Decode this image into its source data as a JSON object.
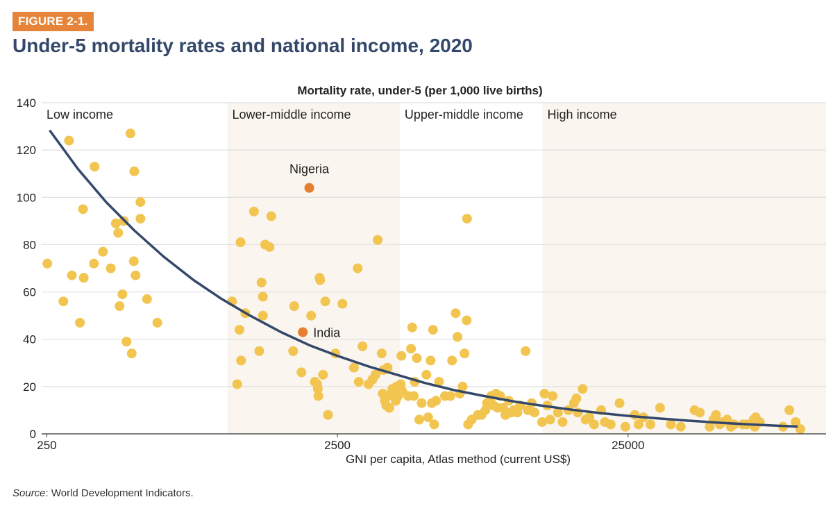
{
  "figure_label": "FIGURE 2-1.",
  "title": "Under-5 mortality rates and national income, 2020",
  "source_label": "Source",
  "source_text": ": World Development Indicators.",
  "colors": {
    "accent": "#e6853a",
    "title": "#34486a",
    "point": "#f2c450",
    "highlight": "#e67e31",
    "curve": "#34486a",
    "band": "#faf5ee",
    "grid": "#dadada"
  },
  "chart_data": {
    "type": "scatter",
    "title": "",
    "ylabel": "Mortality rate, under-5 (per 1,000 live births)",
    "xlabel": "GNI per capita, Atlas method (current US$)",
    "x_scale": "log",
    "xlim": [
      240,
      120000
    ],
    "ylim": [
      0,
      140
    ],
    "x_ticks": [
      250,
      2500,
      25000
    ],
    "x_tick_labels": [
      "250",
      "2500",
      "25000"
    ],
    "y_ticks": [
      0,
      20,
      40,
      60,
      80,
      100,
      120,
      140
    ],
    "y_tick_labels": [
      "0",
      "20",
      "40",
      "60",
      "80",
      "100",
      "120",
      "140"
    ],
    "grid": "horizontal",
    "income_groups": [
      {
        "name": "Low income",
        "from": 240,
        "to": 1045
      },
      {
        "name": "Lower-middle income",
        "from": 1045,
        "to": 4095
      },
      {
        "name": "Upper-middle income",
        "from": 4095,
        "to": 12695
      },
      {
        "name": "High income",
        "from": 12695,
        "to": 120000
      }
    ],
    "highlights": [
      {
        "name": "Nigeria",
        "x": 2000,
        "y": 104
      },
      {
        "name": "India",
        "x": 1900,
        "y": 43
      }
    ],
    "trend_curve": [
      [
        257,
        128
      ],
      [
        320,
        112
      ],
      [
        400,
        98
      ],
      [
        500,
        86
      ],
      [
        630,
        75
      ],
      [
        800,
        65
      ],
      [
        1000,
        57
      ],
      [
        1250,
        50
      ],
      [
        1600,
        43
      ],
      [
        2000,
        37.5
      ],
      [
        2500,
        33
      ],
      [
        3200,
        28.5
      ],
      [
        4000,
        25
      ],
      [
        5000,
        21.5
      ],
      [
        6300,
        18.5
      ],
      [
        8000,
        16
      ],
      [
        10000,
        13.8
      ],
      [
        12500,
        12
      ],
      [
        16000,
        10.2
      ],
      [
        20000,
        8.8
      ],
      [
        25000,
        7.6
      ],
      [
        32000,
        6.5
      ],
      [
        40000,
        5.6
      ],
      [
        50000,
        4.8
      ],
      [
        63000,
        4.1
      ],
      [
        80000,
        3.5
      ],
      [
        95000,
        3.1
      ]
    ],
    "points": [
      [
        251,
        72
      ],
      [
        285,
        56
      ],
      [
        305,
        67
      ],
      [
        298,
        124
      ],
      [
        325,
        47
      ],
      [
        335,
        66
      ],
      [
        333,
        95
      ],
      [
        363,
        72
      ],
      [
        365,
        113
      ],
      [
        390,
        77
      ],
      [
        415,
        70
      ],
      [
        432,
        89
      ],
      [
        440,
        85
      ],
      [
        445,
        54
      ],
      [
        455,
        59
      ],
      [
        460,
        90
      ],
      [
        470,
        39
      ],
      [
        485,
        127
      ],
      [
        490,
        34
      ],
      [
        498,
        73
      ],
      [
        500,
        111
      ],
      [
        505,
        67
      ],
      [
        525,
        98
      ],
      [
        525,
        91
      ],
      [
        553,
        57
      ],
      [
        600,
        47
      ],
      [
        1085,
        56
      ],
      [
        1150,
        44
      ],
      [
        1130,
        21
      ],
      [
        1160,
        81
      ],
      [
        1165,
        31
      ],
      [
        1205,
        51
      ],
      [
        1290,
        94
      ],
      [
        1345,
        35
      ],
      [
        1370,
        64
      ],
      [
        1385,
        58
      ],
      [
        1385,
        50
      ],
      [
        1410,
        80
      ],
      [
        1460,
        79
      ],
      [
        1480,
        92
      ],
      [
        1760,
        35
      ],
      [
        1775,
        54
      ],
      [
        1880,
        26
      ],
      [
        2030,
        50
      ],
      [
        2090,
        22
      ],
      [
        2130,
        21
      ],
      [
        2140,
        19
      ],
      [
        2150,
        16
      ],
      [
        2170,
        66
      ],
      [
        2180,
        65
      ],
      [
        2230,
        25
      ],
      [
        2270,
        56
      ],
      [
        2320,
        8
      ],
      [
        2460,
        34
      ],
      [
        2600,
        55
      ],
      [
        2850,
        28
      ],
      [
        2935,
        70
      ],
      [
        2960,
        22
      ],
      [
        3050,
        37
      ],
      [
        3200,
        21
      ],
      [
        3300,
        23
      ],
      [
        3380,
        25
      ],
      [
        3440,
        82
      ],
      [
        3550,
        34
      ],
      [
        3600,
        27
      ],
      [
        3580,
        17
      ],
      [
        3640,
        14
      ],
      [
        3680,
        12
      ],
      [
        3720,
        28
      ],
      [
        3770,
        11
      ],
      [
        3830,
        17
      ],
      [
        3860,
        19
      ],
      [
        3890,
        16
      ],
      [
        3910,
        18
      ],
      [
        3970,
        14
      ],
      [
        3990,
        20
      ],
      [
        4040,
        16
      ],
      [
        4130,
        21
      ],
      [
        4150,
        33
      ],
      [
        4180,
        18
      ],
      [
        4380,
        16
      ],
      [
        4480,
        36
      ],
      [
        4520,
        45
      ],
      [
        4580,
        16
      ],
      [
        4610,
        22
      ],
      [
        4690,
        32
      ],
      [
        4780,
        6
      ],
      [
        4870,
        13
      ],
      [
        5060,
        25
      ],
      [
        5130,
        7
      ],
      [
        5230,
        31
      ],
      [
        5280,
        13
      ],
      [
        5330,
        44
      ],
      [
        5380,
        4
      ],
      [
        5460,
        14
      ],
      [
        5590,
        22
      ],
      [
        5860,
        16
      ],
      [
        6120,
        16
      ],
      [
        6200,
        31
      ],
      [
        6380,
        51
      ],
      [
        6470,
        41
      ],
      [
        6590,
        17
      ],
      [
        6740,
        20
      ],
      [
        6840,
        34
      ],
      [
        6960,
        48
      ],
      [
        6980,
        91
      ],
      [
        7040,
        4
      ],
      [
        7240,
        6
      ],
      [
        7600,
        8
      ],
      [
        7830,
        8
      ],
      [
        8070,
        10
      ],
      [
        8170,
        13
      ],
      [
        8400,
        14
      ],
      [
        8450,
        16
      ],
      [
        8600,
        12
      ],
      [
        8780,
        17
      ],
      [
        8900,
        11
      ],
      [
        9080,
        16
      ],
      [
        9300,
        11
      ],
      [
        9460,
        8
      ],
      [
        9720,
        14
      ],
      [
        9880,
        9
      ],
      [
        10090,
        10
      ],
      [
        10400,
        9
      ],
      [
        10630,
        12
      ],
      [
        11100,
        35
      ],
      [
        11300,
        10
      ],
      [
        11650,
        13
      ],
      [
        11920,
        9
      ],
      [
        12650,
        5
      ],
      [
        12890,
        17
      ],
      [
        13200,
        12
      ],
      [
        13480,
        6
      ],
      [
        13750,
        16
      ],
      [
        14340,
        9
      ],
      [
        14880,
        5
      ],
      [
        15570,
        10
      ],
      [
        16280,
        13
      ],
      [
        16600,
        15
      ],
      [
        16790,
        9
      ],
      [
        17440,
        19
      ],
      [
        17870,
        6
      ],
      [
        18400,
        7
      ],
      [
        19100,
        4
      ],
      [
        20200,
        10
      ],
      [
        20800,
        5
      ],
      [
        21780,
        4
      ],
      [
        23370,
        13
      ],
      [
        24460,
        3
      ],
      [
        26370,
        8
      ],
      [
        27170,
        4
      ],
      [
        28210,
        7
      ],
      [
        29830,
        4
      ],
      [
        32220,
        11
      ],
      [
        35090,
        4
      ],
      [
        37960,
        3
      ],
      [
        42350,
        10
      ],
      [
        44130,
        9
      ],
      [
        47730,
        3
      ],
      [
        49170,
        6
      ],
      [
        50140,
        8
      ],
      [
        51650,
        4
      ],
      [
        52750,
        5
      ],
      [
        54850,
        6
      ],
      [
        56450,
        3
      ],
      [
        57900,
        4
      ],
      [
        62120,
        4
      ],
      [
        64050,
        4
      ],
      [
        67600,
        6
      ],
      [
        68200,
        3
      ],
      [
        68700,
        7
      ],
      [
        71000,
        5
      ],
      [
        85350,
        3
      ],
      [
        89700,
        10
      ],
      [
        94300,
        5
      ],
      [
        97880,
        2
      ]
    ]
  }
}
